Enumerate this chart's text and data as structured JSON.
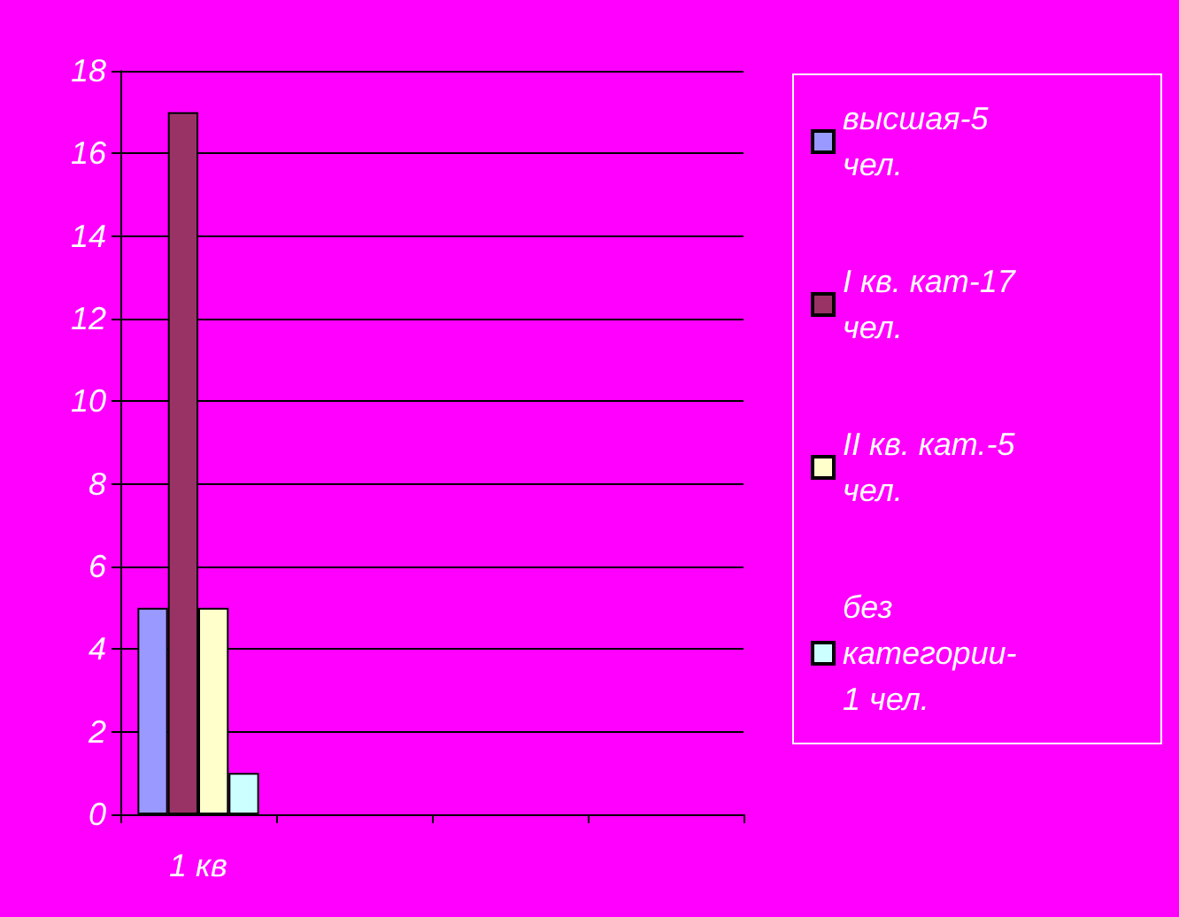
{
  "chart_data": {
    "type": "bar",
    "categories": [
      "1 кв",
      null,
      null,
      null
    ],
    "series": [
      {
        "name": "высшая-5 чел.",
        "color": "#9999ff",
        "values": [
          5,
          null,
          null,
          null
        ]
      },
      {
        "name": "I кв. кат-17 чел.",
        "color": "#993366",
        "values": [
          17,
          null,
          null,
          null
        ]
      },
      {
        "name": "II кв. кат.-5 чел.",
        "color": "#ffffcc",
        "values": [
          5,
          null,
          null,
          null
        ]
      },
      {
        "name": "без категории-1 чел.",
        "color": "#ccffff",
        "values": [
          1,
          null,
          null,
          null
        ]
      }
    ],
    "ylim": [
      0,
      18
    ],
    "yticks": [
      0,
      2,
      4,
      6,
      8,
      10,
      12,
      14,
      16,
      18
    ],
    "grid": "y",
    "legend": "right"
  }
}
